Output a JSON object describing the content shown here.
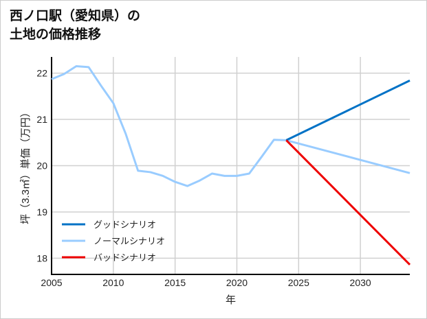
{
  "chart_data": {
    "type": "line",
    "title_line1": "西ノ口駅（愛知県）の",
    "title_line2": "土地の価格推移",
    "xlabel": "年",
    "ylabel": "坪（3.3㎡）単価（万円）",
    "xlim": [
      2005,
      2034
    ],
    "ylim": [
      17.65,
      22.35
    ],
    "xticks": [
      2005,
      2010,
      2015,
      2020,
      2025,
      2030
    ],
    "yticks": [
      18,
      19,
      20,
      21,
      22
    ],
    "grid": true,
    "legend_position": "bottom-left",
    "series": [
      {
        "name": "グッドシナリオ",
        "color": "#0072c6",
        "x": [
          2024,
          2034
        ],
        "y": [
          20.55,
          21.84
        ]
      },
      {
        "name": "ノーマルシナリオ",
        "color": "#99ccff",
        "x": [
          2005,
          2006,
          2007,
          2008,
          2009,
          2010,
          2011,
          2012,
          2013,
          2014,
          2015,
          2016,
          2017,
          2018,
          2019,
          2020,
          2021,
          2022,
          2023,
          2024,
          2034
        ],
        "y": [
          21.87,
          21.98,
          22.15,
          22.13,
          21.73,
          21.35,
          20.69,
          19.89,
          19.86,
          19.78,
          19.65,
          19.56,
          19.68,
          19.83,
          19.78,
          19.78,
          19.83,
          20.19,
          20.56,
          20.55,
          19.84
        ]
      },
      {
        "name": "バッドシナリオ",
        "color": "#ee0000",
        "x": [
          2024,
          2034
        ],
        "y": [
          20.55,
          17.86
        ]
      }
    ]
  }
}
